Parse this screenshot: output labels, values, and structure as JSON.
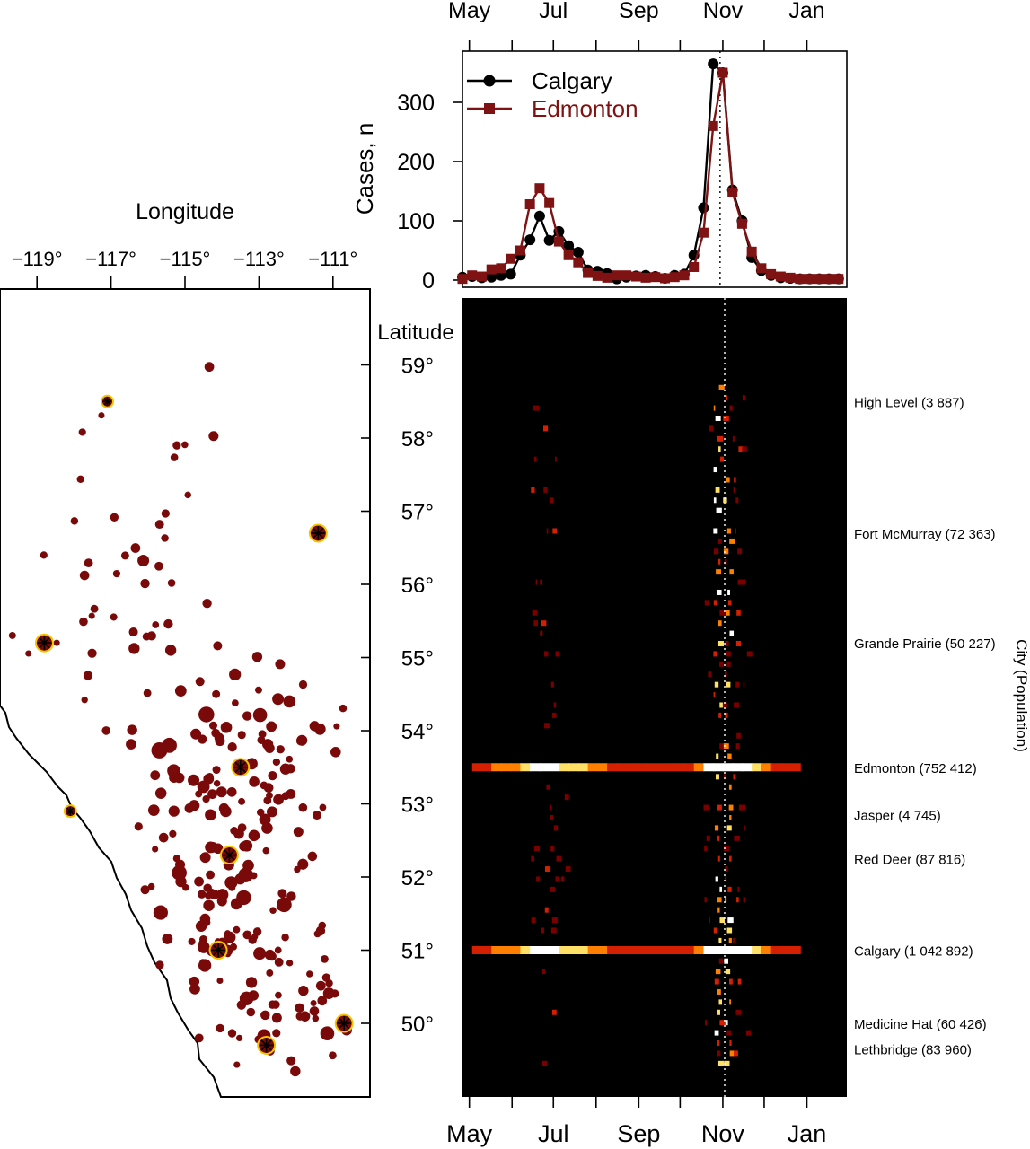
{
  "chart_data": [
    {
      "type": "line",
      "ylabel": "Cases, n",
      "ylim": [
        0,
        385
      ],
      "yticks": [
        0,
        100,
        200,
        300
      ],
      "x_axis": {
        "unit": "week",
        "start": "2009-04-26",
        "end": "2010-01-30",
        "tick_labels": [
          "May",
          "Jul",
          "Sep",
          "Nov",
          "Jan"
        ],
        "tick_dates": [
          "2009-05-01",
          "2009-07-01",
          "2009-09-01",
          "2009-11-01",
          "2010-01-01"
        ],
        "minor_tick_dates": [
          "2009-06-01",
          "2009-08-01",
          "2009-10-01",
          "2009-12-01"
        ]
      },
      "reference_line_date": "2009-10-30",
      "legend_position": "top-left",
      "series": [
        {
          "name": "Calgary",
          "color": "#000000",
          "marker": "circle",
          "x": [
            "2009-04-26",
            "2009-05-03",
            "2009-05-10",
            "2009-05-17",
            "2009-05-24",
            "2009-05-31",
            "2009-06-07",
            "2009-06-14",
            "2009-06-21",
            "2009-06-28",
            "2009-07-05",
            "2009-07-12",
            "2009-07-19",
            "2009-07-26",
            "2009-08-02",
            "2009-08-09",
            "2009-08-16",
            "2009-08-23",
            "2009-08-30",
            "2009-09-06",
            "2009-09-13",
            "2009-09-20",
            "2009-09-27",
            "2009-10-04",
            "2009-10-11",
            "2009-10-18",
            "2009-10-25",
            "2009-11-01",
            "2009-11-08",
            "2009-11-15",
            "2009-11-22",
            "2009-11-29",
            "2009-12-06",
            "2009-12-13",
            "2009-12-20",
            "2009-12-27",
            "2010-01-03",
            "2010-01-10",
            "2010-01-17",
            "2010-01-24"
          ],
          "values": [
            5,
            6,
            4,
            5,
            8,
            10,
            42,
            68,
            108,
            67,
            82,
            58,
            47,
            17,
            15,
            11,
            2,
            5,
            7,
            8,
            6,
            3,
            8,
            10,
            42,
            122,
            365,
            350,
            152,
            100,
            38,
            16,
            8,
            4,
            3,
            2,
            2,
            2,
            2,
            2
          ]
        },
        {
          "name": "Edmonton",
          "color": "#7f1212",
          "marker": "square",
          "x": [
            "2009-04-26",
            "2009-05-03",
            "2009-05-10",
            "2009-05-17",
            "2009-05-24",
            "2009-05-31",
            "2009-06-07",
            "2009-06-14",
            "2009-06-21",
            "2009-06-28",
            "2009-07-05",
            "2009-07-12",
            "2009-07-19",
            "2009-07-26",
            "2009-08-02",
            "2009-08-09",
            "2009-08-16",
            "2009-08-23",
            "2009-08-30",
            "2009-09-06",
            "2009-09-13",
            "2009-09-20",
            "2009-09-27",
            "2009-10-04",
            "2009-10-11",
            "2009-10-18",
            "2009-10-25",
            "2009-11-01",
            "2009-11-08",
            "2009-11-15",
            "2009-11-22",
            "2009-11-29",
            "2009-12-06",
            "2009-12-13",
            "2009-12-20",
            "2009-12-27",
            "2010-01-03",
            "2010-01-10",
            "2010-01-17",
            "2010-01-24"
          ],
          "values": [
            2,
            8,
            6,
            18,
            20,
            36,
            50,
            128,
            155,
            130,
            65,
            42,
            30,
            12,
            7,
            4,
            8,
            8,
            6,
            4,
            5,
            3,
            5,
            8,
            22,
            80,
            260,
            350,
            148,
            95,
            48,
            20,
            10,
            6,
            4,
            2,
            2,
            2,
            2,
            2
          ]
        }
      ]
    },
    {
      "type": "scatter",
      "xlabel": "Longitude",
      "ylabel": "Latitude",
      "xticks": [
        -119,
        -117,
        -115,
        -113,
        -111
      ],
      "xtick_labels": [
        "−119°",
        "−117°",
        "−115°",
        "−113°",
        "−111°"
      ],
      "yticks": [
        50,
        51,
        52,
        53,
        54,
        55,
        56,
        57,
        58,
        59
      ],
      "ytick_labels": [
        "50°",
        "51°",
        "52°",
        "53°",
        "54°",
        "55°",
        "56°",
        "57°",
        "58°",
        "59°"
      ],
      "xlim": [
        -120.0,
        -110.0
      ],
      "ylim": [
        48.9,
        60.0
      ],
      "point_color": "#7a0a0a",
      "highlight_color": "#f5c400",
      "highlighted_cities": [
        {
          "name": "High Level",
          "lon": -117.1,
          "lat": 58.5
        },
        {
          "name": "Fort McMurray",
          "lon": -111.4,
          "lat": 56.7
        },
        {
          "name": "Grande Prairie",
          "lon": -118.8,
          "lat": 55.2
        },
        {
          "name": "Edmonton",
          "lon": -113.5,
          "lat": 53.5
        },
        {
          "name": "Jasper",
          "lon": -118.1,
          "lat": 52.9
        },
        {
          "name": "Red Deer",
          "lon": -113.8,
          "lat": 52.3
        },
        {
          "name": "Calgary",
          "lon": -114.1,
          "lat": 51.0
        },
        {
          "name": "Medicine Hat",
          "lon": -110.7,
          "lat": 50.0
        },
        {
          "name": "Lethbridge",
          "lon": -112.8,
          "lat": 49.7
        }
      ]
    },
    {
      "type": "heatmap",
      "ylabel": "City (Population)",
      "x_tick_labels": [
        "May",
        "Jul",
        "Sep",
        "Nov",
        "Jan"
      ],
      "y_axis": "latitude",
      "colormap": [
        "#000000",
        "#7a0000",
        "#d42000",
        "#ff8000",
        "#ffe066",
        "#ffffff"
      ],
      "row_labels": [
        {
          "label": "High Level (3 887)",
          "lat": 58.5
        },
        {
          "label": "Fort McMurray (72 363)",
          "lat": 56.7
        },
        {
          "label": "Grande Prairie (50 227)",
          "lat": 55.2
        },
        {
          "label": "Edmonton (752 412)",
          "lat": 53.5
        },
        {
          "label": "Jasper (4 745)",
          "lat": 52.85
        },
        {
          "label": "Red Deer (87 816)",
          "lat": 52.25
        },
        {
          "label": "Calgary (1 042 892)",
          "lat": 51.0
        },
        {
          "label": "Medicine Hat (60 426)",
          "lat": 50.0
        },
        {
          "label": "Lethbridge (83 960)",
          "lat": 49.65
        }
      ]
    }
  ]
}
